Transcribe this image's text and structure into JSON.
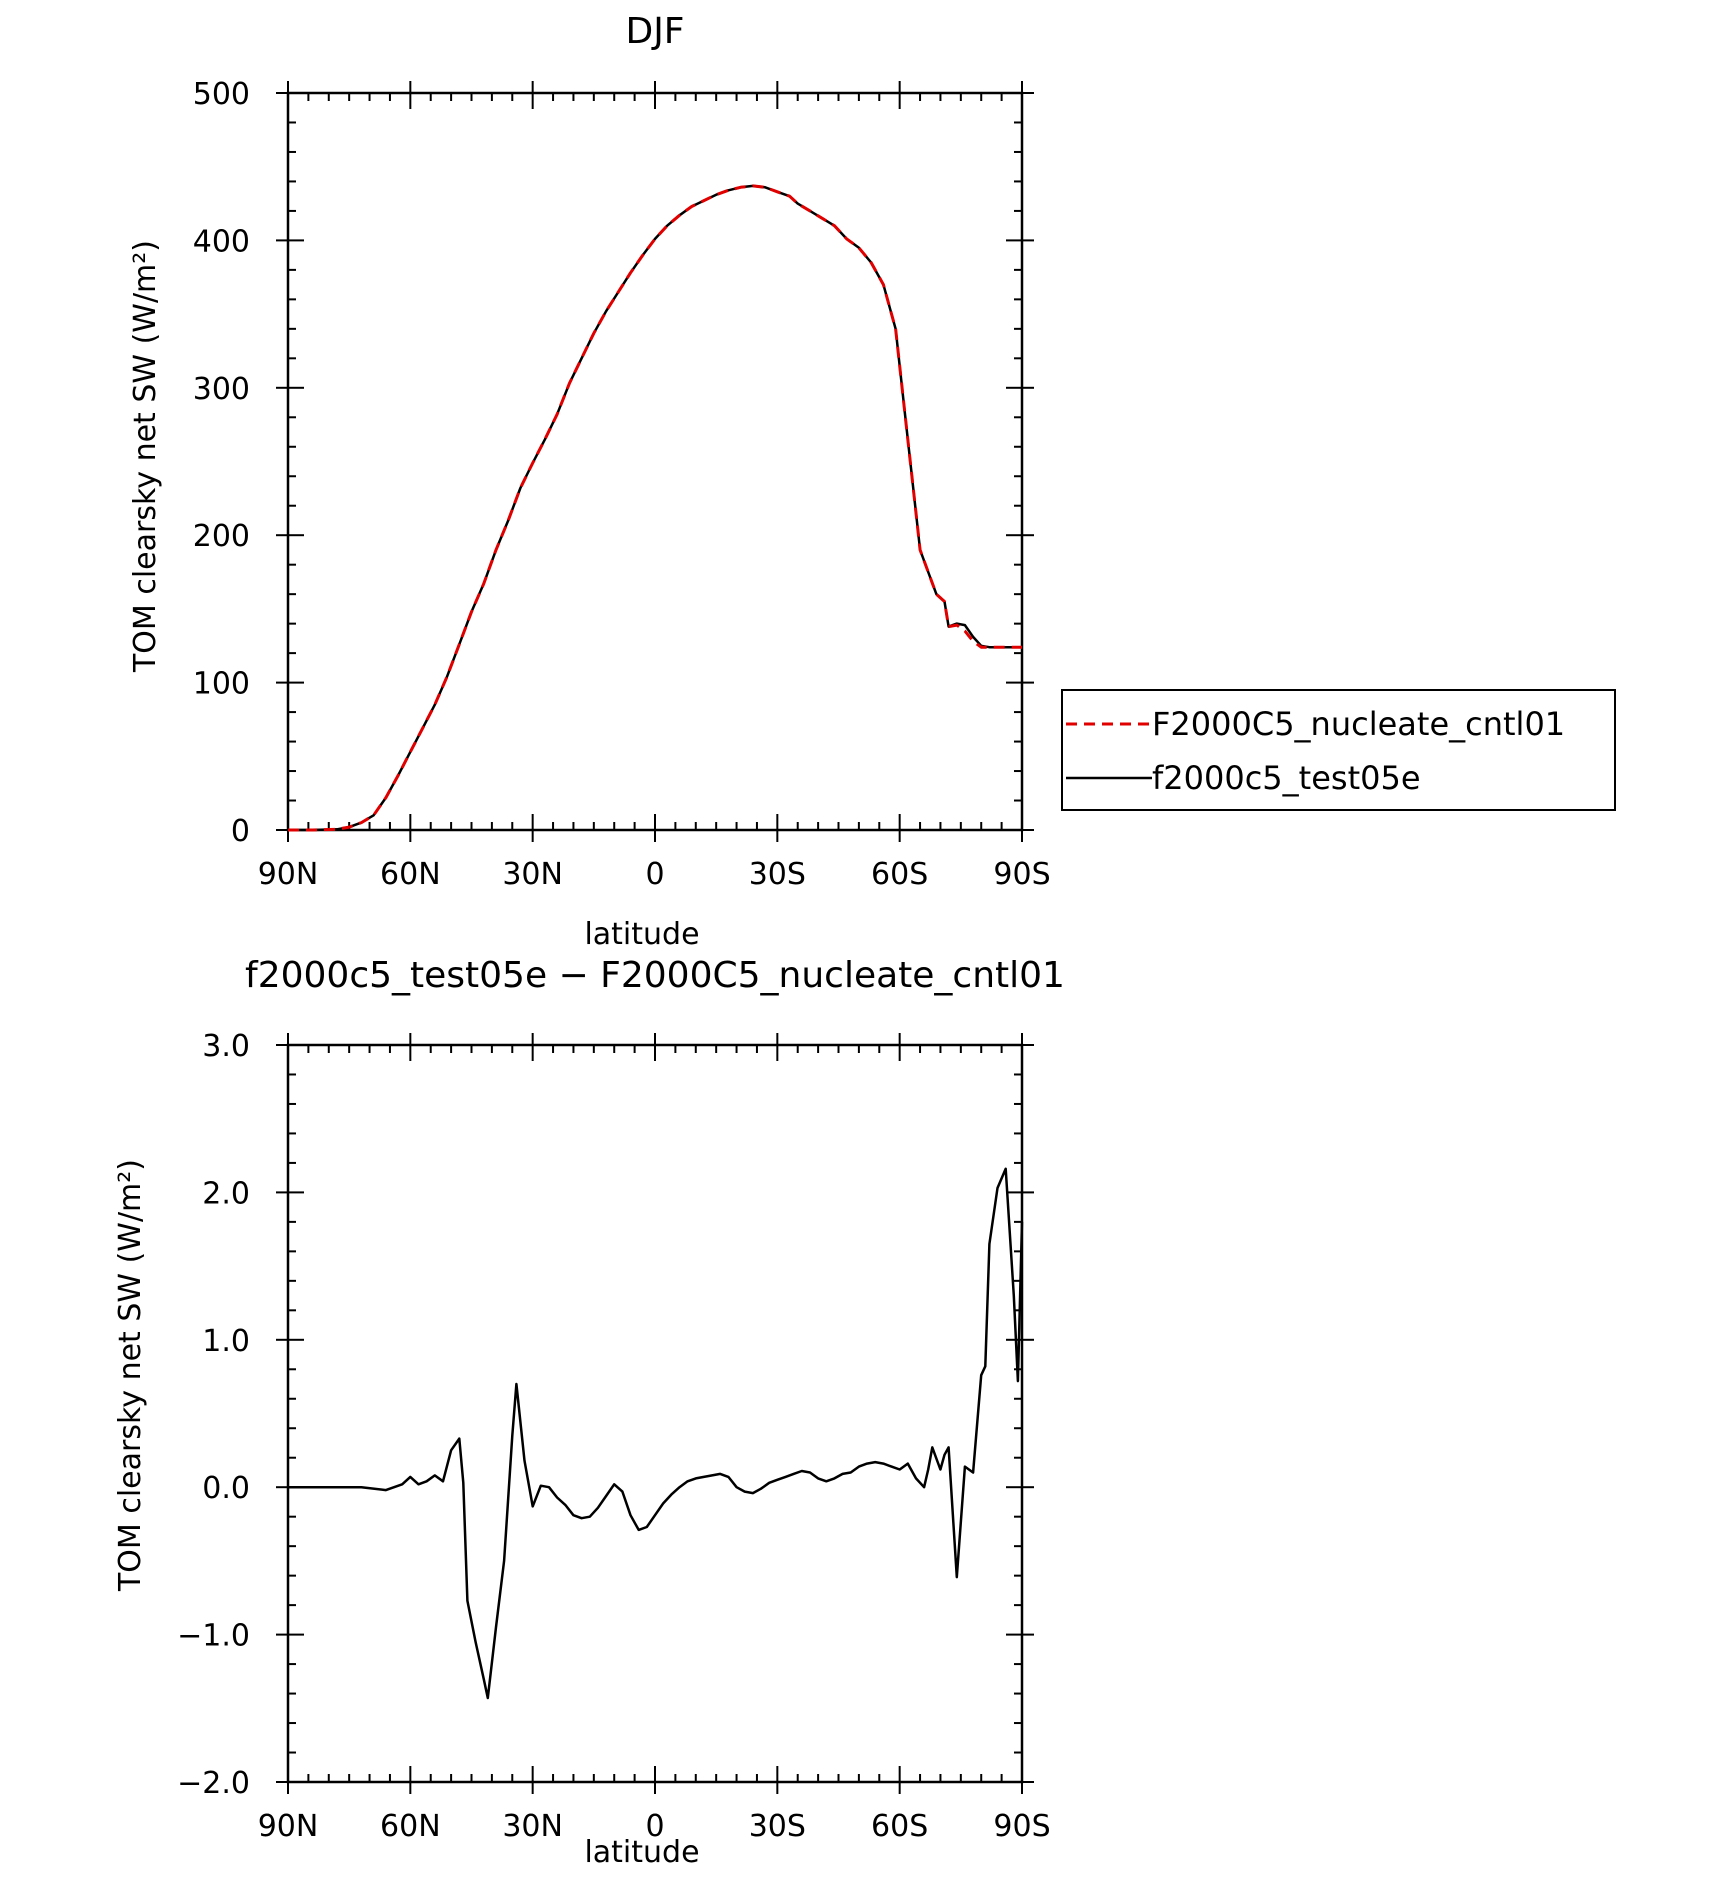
{
  "chart_data": [
    {
      "type": "line",
      "title": "DJF",
      "xlabel": "latitude",
      "ylabel": "TOM clearsky net SW (W/m²)",
      "xlim": [
        -90,
        90
      ],
      "ylim": [
        0,
        500
      ],
      "x_tick_values": [
        -90,
        -60,
        -30,
        0,
        30,
        60,
        90
      ],
      "x_tick_labels": [
        "90N",
        "60N",
        "30N",
        "0",
        "30S",
        "60S",
        "90S"
      ],
      "y_tick_values": [
        0,
        100,
        200,
        300,
        400,
        500
      ],
      "y_tick_labels": [
        "0",
        "100",
        "200",
        "300",
        "400",
        "500"
      ],
      "grid": false,
      "legend_position": "right",
      "series": [
        {
          "name": "F2000C5_nucleate_cntl01",
          "color": "#e00000",
          "dash": "dashed",
          "x": [
            -90,
            -84,
            -78,
            -75,
            -72,
            -69,
            -66,
            -63,
            -60,
            -57,
            -54,
            -51,
            -48,
            -45,
            -42,
            -39,
            -36,
            -33,
            -30,
            -27,
            -24,
            -21,
            -18,
            -15,
            -12,
            -9,
            -6,
            -3,
            0,
            3,
            6,
            9,
            12,
            15,
            18,
            21,
            24,
            27,
            30,
            33,
            35,
            38,
            41,
            44,
            47,
            50,
            53,
            56,
            59,
            61,
            63,
            65,
            67,
            69,
            71,
            72,
            74,
            76,
            78,
            80,
            82,
            84,
            86,
            88,
            90
          ],
          "y": [
            0,
            0,
            0.5,
            2,
            5,
            10,
            22,
            37,
            53,
            69,
            85,
            104,
            126,
            148,
            167,
            190,
            210,
            232,
            249,
            265,
            282,
            303,
            320,
            337,
            352,
            365,
            378,
            390,
            401,
            410,
            417,
            423,
            427,
            431,
            434,
            436,
            437,
            436,
            433,
            430,
            425,
            420,
            415,
            410,
            401,
            395,
            385,
            370,
            340,
            290,
            240,
            190,
            175,
            160,
            155,
            138,
            139,
            135,
            128,
            124,
            124,
            124,
            124,
            124,
            124
          ]
        },
        {
          "name": "f2000c5_test05e",
          "color": "#000000",
          "dash": "solid",
          "x": [
            -90,
            -84,
            -78,
            -75,
            -72,
            -69,
            -66,
            -63,
            -60,
            -57,
            -54,
            -51,
            -48,
            -45,
            -42,
            -39,
            -36,
            -33,
            -30,
            -27,
            -24,
            -21,
            -18,
            -15,
            -12,
            -9,
            -6,
            -3,
            0,
            3,
            6,
            9,
            12,
            15,
            18,
            21,
            24,
            27,
            30,
            33,
            35,
            38,
            41,
            44,
            47,
            50,
            53,
            56,
            59,
            61,
            63,
            65,
            67,
            69,
            71,
            72,
            74,
            76,
            78,
            80,
            82,
            84,
            86,
            88,
            90
          ],
          "y": [
            0,
            0,
            0.5,
            2,
            5,
            10,
            22,
            37,
            53,
            69,
            85,
            104,
            126,
            148,
            167,
            190,
            210,
            232,
            249,
            265,
            282,
            303,
            320,
            337,
            352,
            365,
            378,
            390,
            401,
            410,
            417,
            423,
            427,
            431,
            434,
            436,
            437,
            436,
            433,
            430,
            425,
            420,
            415,
            410,
            401,
            395,
            385,
            370,
            340,
            290,
            240,
            190,
            175,
            160,
            155,
            138,
            140,
            139,
            131,
            125,
            124,
            124,
            124,
            124,
            124
          ]
        }
      ]
    },
    {
      "type": "line",
      "title": "f2000c5_test05e − F2000C5_nucleate_cntl01",
      "xlabel": "latitude",
      "ylabel": "TOM clearsky net SW (W/m²)",
      "xlim": [
        -90,
        90
      ],
      "ylim": [
        -2.0,
        3.0
      ],
      "x_tick_values": [
        -90,
        -60,
        -30,
        0,
        30,
        60,
        90
      ],
      "x_tick_labels": [
        "90N",
        "60N",
        "30N",
        "0",
        "30S",
        "60S",
        "90S"
      ],
      "y_tick_values": [
        -2.0,
        -1.0,
        0.0,
        1.0,
        2.0,
        3.0
      ],
      "y_tick_labels": [
        "−2.0",
        "−1.0",
        "0.0",
        "1.0",
        "2.0",
        "3.0"
      ],
      "grid": false,
      "series": [
        {
          "color": "#000000",
          "dash": "solid",
          "x": [
            -90,
            -84,
            -78,
            -72,
            -66,
            -62,
            -60,
            -58,
            -56,
            -54,
            -52,
            -50,
            -48,
            -47,
            -46,
            -44,
            -42,
            -41,
            -39,
            -37,
            -35,
            -34,
            -32,
            -30,
            -28,
            -26,
            -24,
            -22,
            -20,
            -18,
            -16,
            -14,
            -12,
            -10,
            -8,
            -6,
            -4,
            -2,
            0,
            2,
            4,
            6,
            8,
            10,
            12,
            14,
            16,
            18,
            20,
            22,
            24,
            26,
            28,
            30,
            32,
            34,
            36,
            38,
            40,
            42,
            44,
            46,
            48,
            50,
            52,
            54,
            56,
            58,
            60,
            62,
            64,
            66,
            67,
            68,
            70,
            71,
            72,
            74,
            76,
            78,
            80,
            81,
            82,
            84,
            86,
            88,
            89,
            90
          ],
          "y": [
            0,
            0,
            0,
            0,
            -0.02,
            0.02,
            0.07,
            0.02,
            0.04,
            0.08,
            0.04,
            0.25,
            0.33,
            0.03,
            -0.77,
            -1.05,
            -1.3,
            -1.43,
            -0.95,
            -0.5,
            0.35,
            0.7,
            0.18,
            -0.13,
            0.01,
            0,
            -0.07,
            -0.12,
            -0.19,
            -0.21,
            -0.2,
            -0.14,
            -0.06,
            0.02,
            -0.03,
            -0.19,
            -0.29,
            -0.27,
            -0.19,
            -0.11,
            -0.05,
            0,
            0.04,
            0.06,
            0.07,
            0.08,
            0.09,
            0.07,
            0,
            -0.03,
            -0.04,
            -0.01,
            0.03,
            0.05,
            0.07,
            0.09,
            0.11,
            0.1,
            0.06,
            0.04,
            0.06,
            0.09,
            0.1,
            0.14,
            0.16,
            0.17,
            0.16,
            0.14,
            0.12,
            0.16,
            0.06,
            0,
            0.12,
            0.27,
            0.12,
            0.22,
            0.27,
            -0.61,
            0.14,
            0.1,
            0.76,
            0.82,
            1.65,
            2.03,
            2.16,
            1.3,
            0.72,
            1.8
          ]
        }
      ]
    }
  ],
  "legend": {
    "entries": [
      "F2000C5_nucleate_cntl01",
      "f2000c5_test05e"
    ]
  }
}
